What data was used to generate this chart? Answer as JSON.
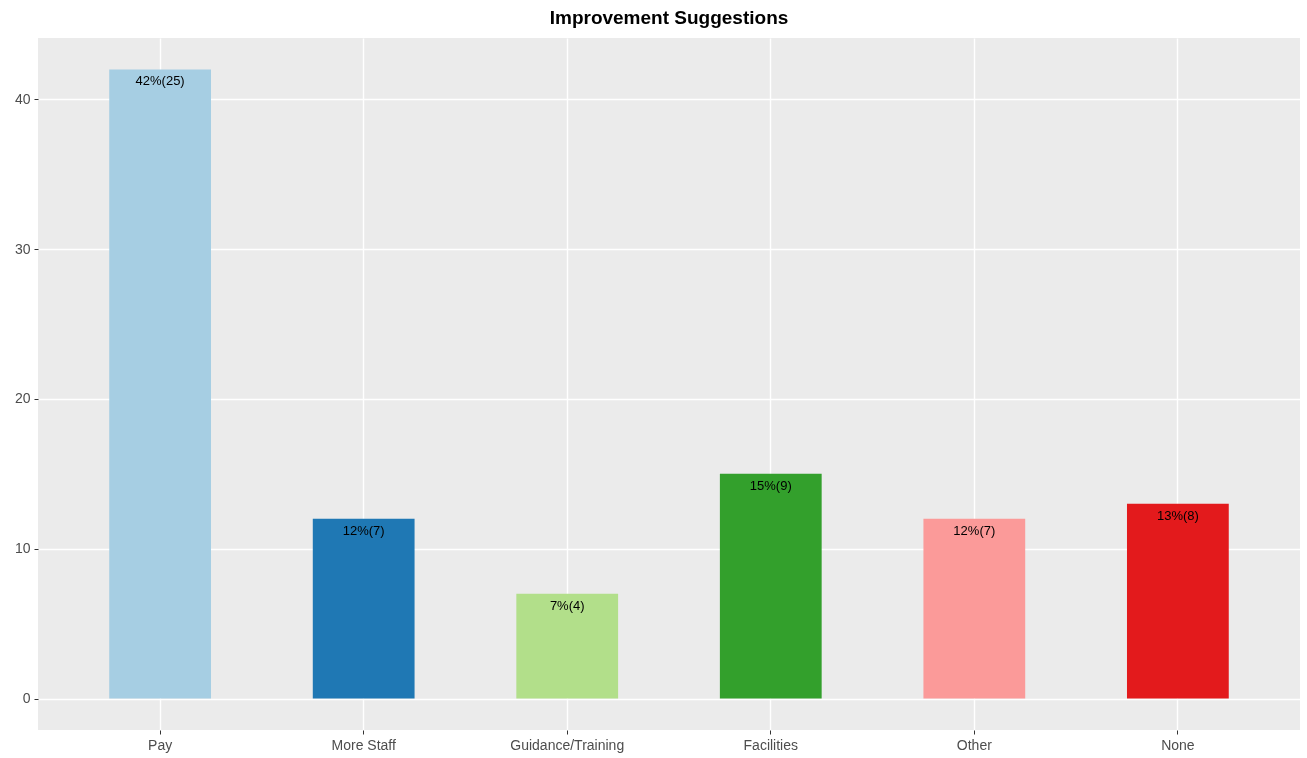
{
  "chart_data": {
    "type": "bar",
    "title": "Improvement Suggestions",
    "categories": [
      "Pay",
      "More Staff",
      "Guidance/Training",
      "Facilities",
      "Other",
      "None"
    ],
    "values": [
      42,
      12,
      7,
      15,
      12,
      13
    ],
    "colors": [
      "#a6cee3",
      "#1f78b4",
      "#b2df8a",
      "#33a02c",
      "#fb9a99",
      "#e31a1c"
    ],
    "value_labels": [
      "42%(25)",
      "12%(7)",
      "7%(4)",
      "15%(9)",
      "12%(7)",
      "13%(8)"
    ],
    "ylim": [
      -2.1,
      44.1
    ],
    "yticks": [
      0,
      10,
      20,
      30,
      40
    ],
    "grid": true
  }
}
